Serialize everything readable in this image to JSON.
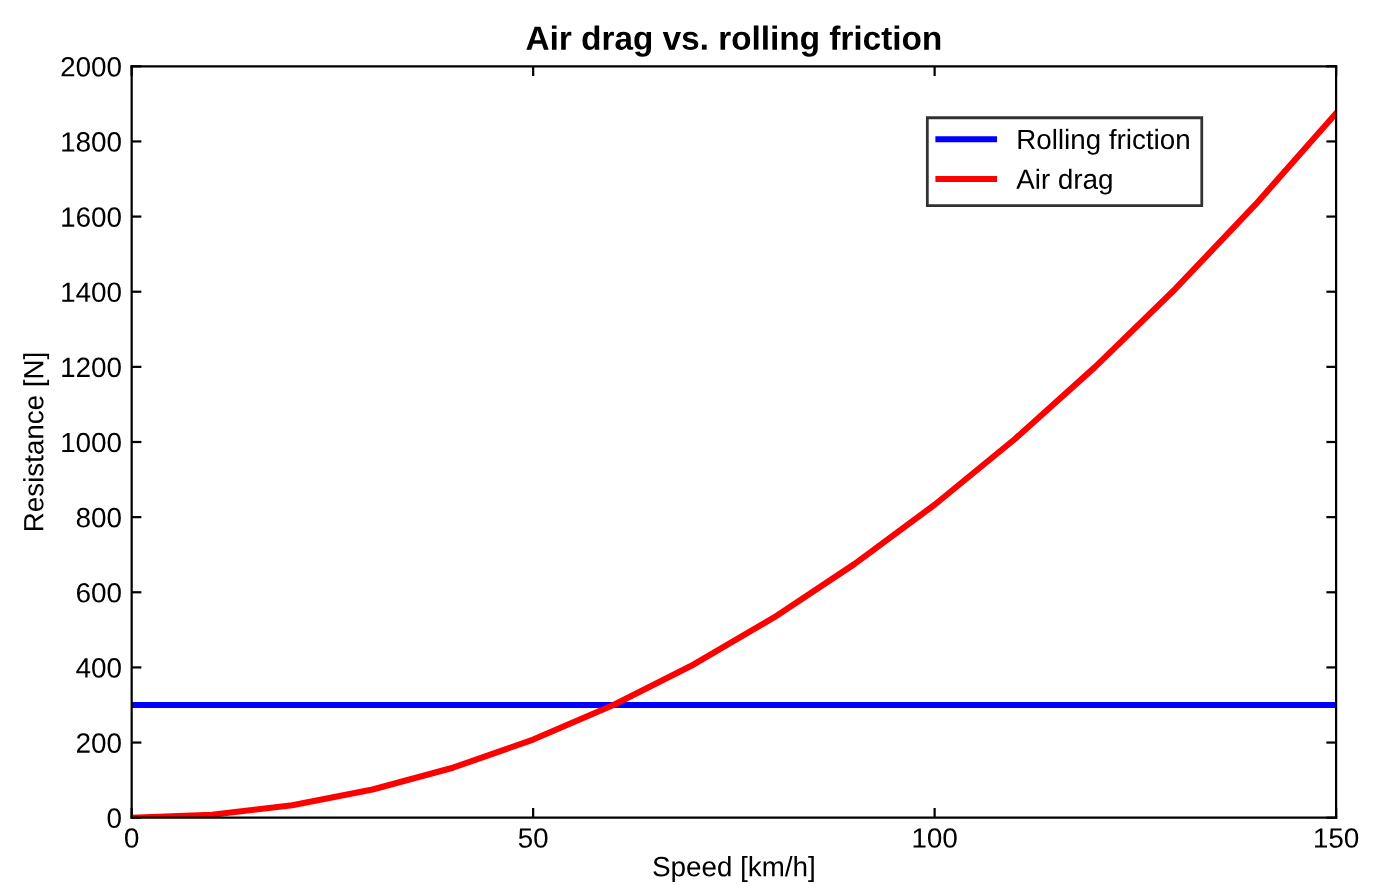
{
  "chart_data": {
    "type": "line",
    "title": "Air drag vs. rolling friction",
    "xlabel": "Speed [km/h]",
    "ylabel": "Resistance [N]",
    "xlim": [
      0,
      150
    ],
    "xticks": [
      0,
      50,
      100,
      150
    ],
    "ylim": [
      0,
      2000
    ],
    "yticks": [
      0,
      200,
      400,
      600,
      800,
      1000,
      1200,
      1400,
      1600,
      1800,
      2000
    ],
    "grid": false,
    "legend": "top right",
    "line_style": "solid",
    "marker": "none",
    "series": [
      {
        "name": "Rolling friction",
        "color": "#0000ff",
        "x": [
          0,
          150
        ],
        "values": [
          300,
          300
        ]
      },
      {
        "name": "Air drag",
        "color": "#ff0000",
        "x": [
          0,
          10,
          20,
          30,
          40,
          50,
          60,
          70,
          80,
          90,
          100,
          110,
          120,
          130,
          140,
          150
        ],
        "values": [
          0,
          8,
          33,
          75,
          133,
          208,
          300,
          408,
          533,
          675,
          833,
          1008,
          1200,
          1408,
          1633,
          1875
        ]
      }
    ]
  }
}
